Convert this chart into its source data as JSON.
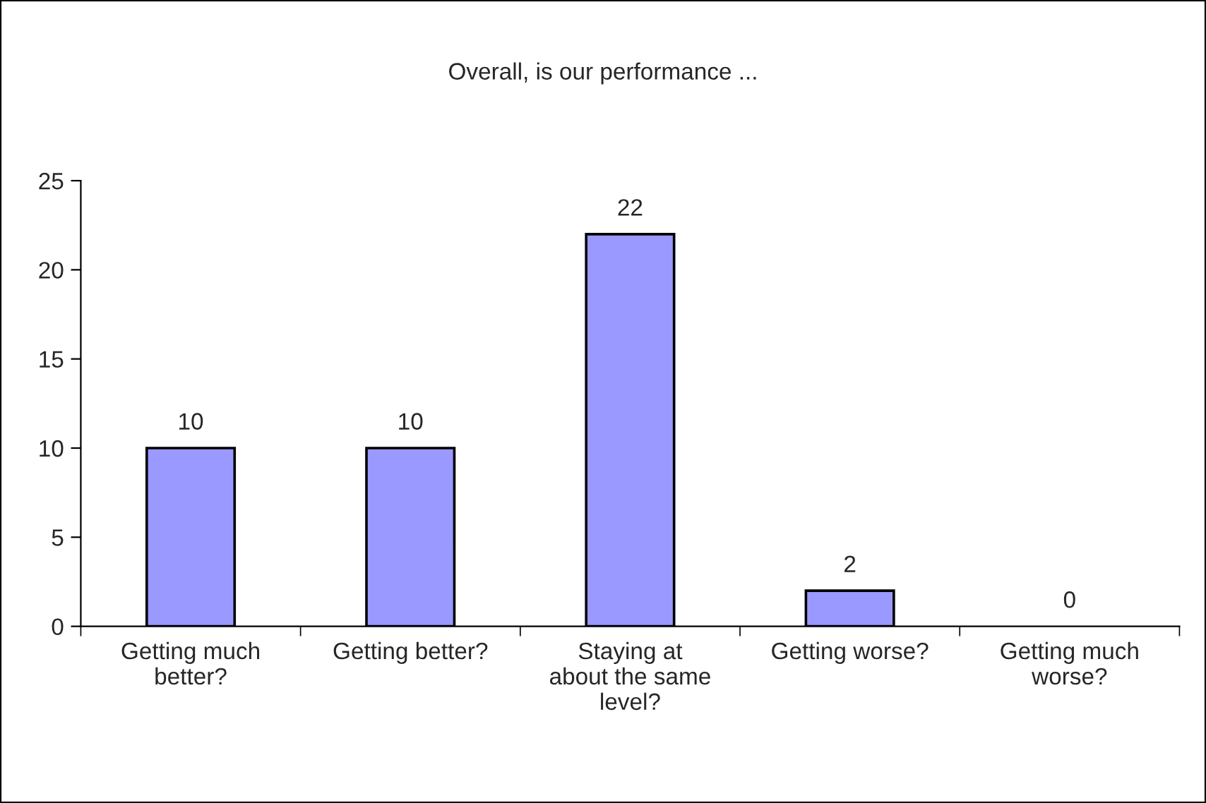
{
  "chart_data": {
    "type": "bar",
    "title": "Overall, is our performance ...",
    "categories": [
      "Getting much better?",
      "Getting better?",
      "Staying at about the same level?",
      "Getting worse?",
      "Getting much worse?"
    ],
    "values": [
      10,
      10,
      22,
      2,
      0
    ],
    "color": "#9999ff",
    "ylim": [
      0,
      25
    ],
    "yticks": [
      0,
      5,
      10,
      15,
      20,
      25
    ],
    "grid": false,
    "data_labels": true
  }
}
